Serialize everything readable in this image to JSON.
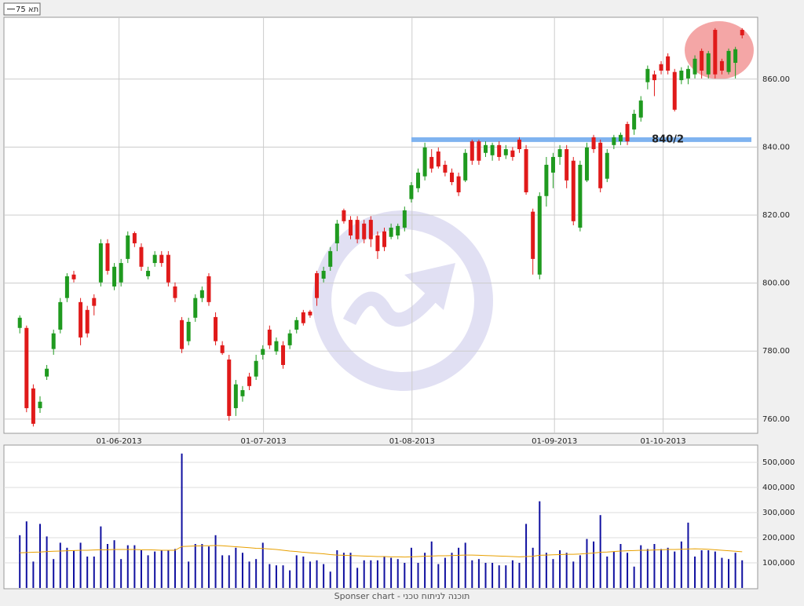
{
  "chart_data": [
    {
      "type": "candlestick",
      "series_name": "תא 75",
      "up_color": "#1f9a1f",
      "down_color": "#e01a1a",
      "xlim": [
        -2.35,
        109.3
      ],
      "xticks": [
        {
          "value": 14.7,
          "label": "01-06-2013"
        },
        {
          "value": 36.1,
          "label": "01-07-2013"
        },
        {
          "value": 58.1,
          "label": "01-08-2013"
        },
        {
          "value": 79.2,
          "label": "01-09-2013"
        },
        {
          "value": 95.3,
          "label": "01-10-2013"
        }
      ],
      "ylim": [
        755.8,
        878.2
      ],
      "yticks": [
        {
          "value": 760,
          "label": "760.00"
        },
        {
          "value": 780,
          "label": "780.00"
        },
        {
          "value": 800,
          "label": "800.00"
        },
        {
          "value": 820,
          "label": "820.00"
        },
        {
          "value": 840,
          "label": "840.00"
        },
        {
          "value": 860,
          "label": "860.00"
        }
      ],
      "grid": true,
      "annotation": {
        "text": "840/2",
        "value": 842.2,
        "color": "#7fb3f0"
      },
      "open": [
        786.8,
        786.8,
        769.0,
        763.2,
        772.5,
        780.6,
        786.3,
        795.6,
        802.5,
        794.4,
        792.1,
        795.6,
        800.2,
        811.7,
        799.0,
        800.2,
        807.1,
        814.7,
        810.6,
        802.0,
        805.9,
        808.3,
        808.3,
        799.0,
        789.1,
        782.9,
        789.8,
        795.6,
        802.0,
        790.0,
        781.7,
        777.5,
        763.2,
        766.7,
        772.5,
        772.5,
        778.9,
        786.3,
        779.9,
        781.7,
        781.7,
        786.3,
        791.4,
        791.6,
        802.9,
        801.3,
        804.8,
        811.7,
        821.4,
        818.6,
        818.6,
        817.5,
        818.6,
        814.0,
        815.2,
        813.6,
        814.0,
        816.3,
        824.7,
        827.9,
        831.4,
        837.1,
        838.7,
        834.8,
        832.5,
        831.4,
        830.2,
        841.7,
        841.7,
        838.3,
        837.6,
        840.6,
        837.6,
        839.0,
        842.2,
        839.4,
        821.0,
        802.5,
        825.6,
        832.5,
        837.1,
        839.4,
        836.0,
        816.3,
        830.2,
        842.9,
        841.3,
        830.7,
        840.6,
        841.7,
        846.8,
        845.2,
        848.7,
        859.1,
        861.4,
        864.4,
        866.7,
        862.1,
        859.7,
        860.2,
        861.4,
        868.3,
        861.4,
        874.5,
        865.3,
        862.1,
        864.8,
        874.5
      ],
      "high": [
        790.5,
        787.5,
        770.2,
        766.7,
        775.9,
        786.3,
        795.6,
        802.9,
        803.6,
        795.6,
        793.3,
        796.7,
        812.9,
        812.9,
        805.9,
        807.1,
        815.2,
        815.2,
        811.7,
        804.8,
        809.4,
        809.4,
        809.4,
        800.2,
        790.0,
        789.8,
        796.7,
        799.0,
        802.9,
        791.4,
        782.9,
        778.9,
        771.5,
        769.7,
        773.6,
        778.9,
        781.7,
        787.5,
        784.0,
        782.9,
        786.3,
        790.0,
        792.1,
        792.1,
        803.6,
        804.8,
        810.6,
        818.6,
        821.9,
        819.7,
        819.7,
        818.6,
        819.7,
        815.2,
        816.3,
        817.5,
        817.5,
        822.5,
        829.7,
        833.7,
        841.3,
        839.4,
        839.9,
        836.0,
        833.7,
        832.5,
        839.4,
        842.2,
        842.2,
        841.7,
        841.3,
        841.7,
        840.6,
        840.0,
        842.9,
        840.6,
        821.9,
        826.7,
        837.1,
        838.3,
        840.6,
        840.6,
        837.1,
        836.0,
        841.3,
        843.6,
        842.2,
        839.4,
        843.6,
        844.3,
        847.5,
        851.0,
        855.0,
        864.0,
        862.5,
        865.3,
        867.6,
        863.0,
        863.5,
        864.0,
        867.0,
        869.0,
        868.3,
        875.0,
        866.0,
        869.0,
        869.5,
        875.0
      ],
      "low": [
        785.2,
        762.0,
        757.8,
        761.8,
        771.5,
        778.9,
        785.2,
        794.4,
        800.2,
        781.7,
        784.0,
        790.5,
        799.0,
        802.5,
        797.9,
        799.0,
        805.9,
        810.6,
        803.6,
        801.1,
        804.8,
        804.8,
        799.0,
        794.4,
        779.4,
        781.7,
        788.6,
        794.4,
        793.3,
        781.7,
        778.9,
        759.5,
        760.9,
        765.1,
        768.5,
        771.5,
        777.5,
        780.6,
        778.9,
        774.8,
        780.6,
        785.2,
        787.5,
        789.8,
        793.3,
        800.2,
        803.6,
        809.4,
        817.5,
        812.9,
        811.7,
        811.7,
        810.6,
        807.1,
        809.4,
        812.9,
        812.9,
        815.2,
        823.7,
        826.7,
        830.2,
        832.5,
        833.7,
        831.4,
        828.8,
        825.6,
        829.7,
        834.8,
        834.8,
        837.1,
        836.0,
        836.0,
        836.5,
        836.0,
        838.3,
        826.0,
        802.5,
        801.1,
        822.5,
        827.9,
        834.8,
        827.9,
        817.0,
        815.2,
        829.7,
        838.3,
        826.7,
        829.7,
        839.4,
        840.6,
        840.6,
        843.6,
        847.5,
        857.0,
        855.0,
        861.4,
        861.4,
        850.5,
        858.5,
        858.5,
        860.2,
        860.2,
        860.2,
        860.2,
        861.4,
        861.4,
        860.2,
        872.0
      ],
      "close": [
        789.8,
        763.2,
        758.6,
        765.1,
        774.8,
        785.2,
        794.4,
        802.0,
        801.1,
        784.0,
        785.2,
        793.3,
        811.7,
        803.6,
        804.8,
        805.9,
        814.0,
        811.7,
        804.8,
        803.6,
        808.3,
        805.9,
        800.2,
        795.6,
        780.6,
        788.6,
        795.6,
        797.9,
        794.4,
        782.9,
        779.4,
        760.9,
        770.2,
        768.5,
        769.7,
        777.1,
        780.6,
        781.7,
        782.9,
        775.9,
        785.2,
        789.1,
        788.2,
        790.5,
        795.6,
        803.6,
        809.4,
        817.5,
        818.2,
        814.0,
        812.9,
        812.9,
        812.9,
        809.4,
        810.6,
        816.3,
        816.8,
        821.4,
        828.8,
        832.5,
        839.9,
        833.7,
        834.3,
        832.5,
        829.7,
        826.7,
        838.3,
        836.0,
        836.0,
        840.6,
        840.6,
        837.1,
        839.4,
        837.1,
        839.4,
        826.7,
        807.1,
        825.6,
        834.8,
        837.1,
        839.4,
        830.2,
        818.2,
        834.8,
        839.9,
        839.4,
        827.9,
        838.3,
        842.9,
        843.6,
        841.7,
        849.8,
        853.7,
        863.0,
        859.7,
        862.5,
        862.5,
        851.0,
        862.5,
        863.0,
        866.0,
        862.5,
        867.6,
        861.4,
        862.5,
        868.3,
        868.8,
        872.9
      ]
    },
    {
      "type": "bar",
      "color": "#1010a0",
      "xlim": [
        -2.35,
        109.3
      ],
      "ylim": [
        0,
        568750
      ],
      "yticks": [
        {
          "value": 100000,
          "label": "100,000"
        },
        {
          "value": 200000,
          "label": "200,000"
        },
        {
          "value": 300000,
          "label": "300,000"
        },
        {
          "value": 400000,
          "label": "400,000"
        },
        {
          "value": 500000,
          "label": "500,000"
        }
      ],
      "grid": true,
      "values": [
        210000,
        265000,
        105000,
        255000,
        205000,
        115000,
        180000,
        160000,
        150000,
        180000,
        125000,
        125000,
        245000,
        175000,
        190000,
        115000,
        170000,
        170000,
        150000,
        130000,
        145000,
        150000,
        150000,
        155000,
        535000,
        105000,
        175000,
        175000,
        165000,
        210000,
        130000,
        130000,
        160000,
        140000,
        105000,
        115000,
        180000,
        95000,
        90000,
        90000,
        70000,
        130000,
        125000,
        105000,
        110000,
        95000,
        65000,
        150000,
        140000,
        140000,
        80000,
        110000,
        110000,
        110000,
        125000,
        120000,
        115000,
        100000,
        160000,
        100000,
        140000,
        185000,
        95000,
        120000,
        140000,
        160000,
        180000,
        110000,
        115000,
        100000,
        100000,
        90000,
        90000,
        110000,
        100000,
        255000,
        160000,
        345000,
        140000,
        115000,
        150000,
        140000,
        105000,
        130000,
        195000,
        185000,
        290000,
        125000,
        145000,
        175000,
        140000,
        85000,
        170000,
        155000,
        175000,
        155000,
        160000,
        145000,
        185000,
        260000,
        125000,
        150000,
        150000,
        145000,
        120000,
        115000,
        140000,
        110000
      ],
      "ma_color": "#e8a000",
      "ma_values": [
        140000,
        141000,
        142000,
        143000,
        145000,
        146000,
        147000,
        148000,
        149000,
        150000,
        150000,
        151000,
        152000,
        152000,
        153000,
        153000,
        153000,
        153000,
        152000,
        152000,
        151000,
        150000,
        150000,
        150000,
        165000,
        166000,
        167000,
        168000,
        168000,
        169000,
        168000,
        166000,
        164000,
        162000,
        160000,
        158000,
        157000,
        155000,
        153000,
        150000,
        147000,
        145000,
        142000,
        140000,
        138000,
        136000,
        133000,
        131000,
        130000,
        129000,
        128000,
        127000,
        126000,
        125000,
        125000,
        124000,
        124000,
        123000,
        124000,
        125000,
        126000,
        127000,
        128000,
        128000,
        129000,
        130000,
        131000,
        131000,
        130000,
        129000,
        128000,
        127000,
        126000,
        125000,
        124000,
        125000,
        126000,
        130000,
        131000,
        132000,
        133000,
        134000,
        134000,
        135000,
        137000,
        139000,
        142000,
        143000,
        145000,
        147000,
        148000,
        149000,
        150000,
        150000,
        151000,
        152000,
        153000,
        153000,
        154000,
        155000,
        156000,
        155000,
        154000,
        152000,
        150000,
        148000,
        146000,
        144000
      ]
    }
  ],
  "footer": "Sponser chart - תוכנה לניתוח טכני"
}
